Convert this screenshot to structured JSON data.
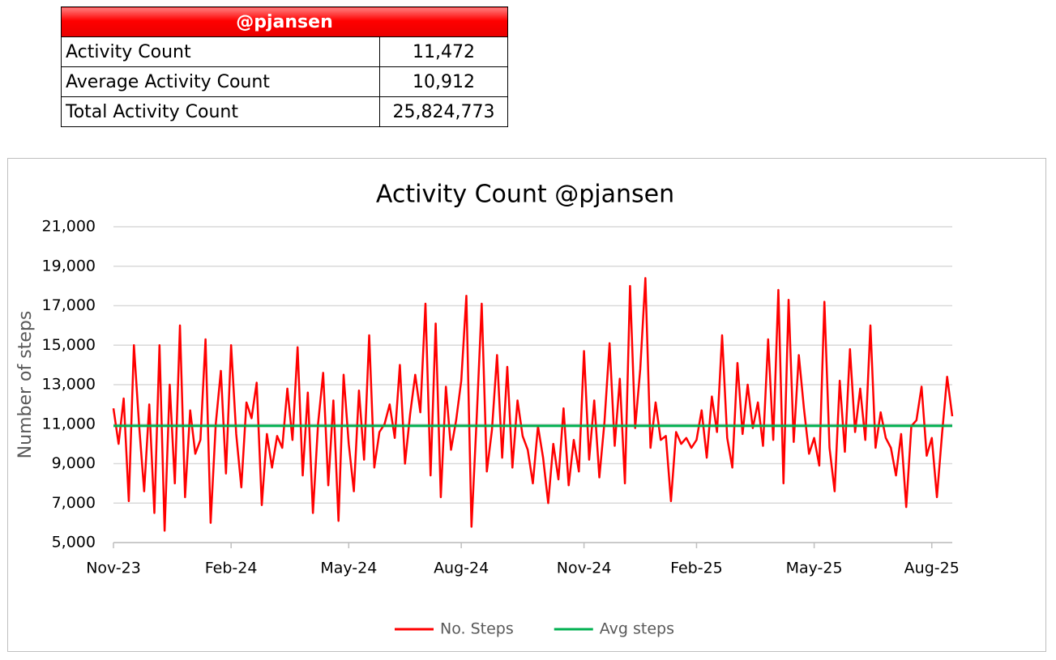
{
  "table": {
    "title": "@pjansen",
    "rows": [
      [
        "Activity Count",
        "11,472"
      ],
      [
        "Average Activity Count",
        "10,912"
      ],
      [
        "Total Activity Count",
        "25,824,773"
      ]
    ]
  },
  "chart_data": {
    "type": "line",
    "title": "Activity Count @pjansen",
    "y_label": "Number of steps",
    "categories": [
      "Nov-23",
      null,
      null,
      null,
      null,
      null,
      null,
      null,
      null,
      null,
      null,
      null,
      null,
      null,
      null,
      null,
      null,
      null,
      null,
      null,
      null,
      null,
      null,
      "Feb-24",
      null,
      null,
      null,
      null,
      null,
      null,
      null,
      null,
      null,
      null,
      null,
      null,
      null,
      null,
      null,
      null,
      null,
      null,
      null,
      null,
      null,
      null,
      "May-24",
      null,
      null,
      null,
      null,
      null,
      null,
      null,
      null,
      null,
      null,
      null,
      null,
      null,
      null,
      null,
      null,
      null,
      null,
      null,
      null,
      null,
      "Aug-24",
      null,
      null,
      null,
      null,
      null,
      null,
      null,
      null,
      null,
      null,
      null,
      null,
      null,
      null,
      null,
      null,
      null,
      null,
      null,
      null,
      null,
      null,
      null,
      "Nov-24",
      null,
      null,
      null,
      null,
      null,
      null,
      null,
      null,
      null,
      null,
      null,
      null,
      null,
      null,
      null,
      null,
      null,
      null,
      null,
      null,
      null,
      "Feb-25",
      null,
      null,
      null,
      null,
      null,
      null,
      null,
      null,
      null,
      null,
      null,
      null,
      null,
      null,
      null,
      null,
      null,
      null,
      null,
      null,
      null,
      null,
      "May-25",
      null,
      null,
      null,
      null,
      null,
      null,
      null,
      null,
      null,
      null,
      null,
      null,
      null,
      null,
      null,
      null,
      null,
      null,
      null,
      null,
      null,
      null,
      "Aug-25",
      null,
      null,
      null,
      null
    ],
    "series": [
      {
        "name": "No. Steps",
        "color": "#ff0000",
        "values": [
          11800,
          10000,
          12300,
          7100,
          15000,
          11000,
          7600,
          12000,
          6500,
          15000,
          5600,
          13000,
          8000,
          16000,
          7300,
          11700,
          9500,
          10200,
          15300,
          6000,
          11000,
          13700,
          8500,
          15000,
          10500,
          7800,
          12100,
          11300,
          13100,
          6900,
          10500,
          8800,
          10400,
          9800,
          12800,
          10200,
          14900,
          8400,
          12600,
          6500,
          11000,
          13600,
          7900,
          12200,
          6100,
          13500,
          10000,
          7600,
          12700,
          9200,
          15500,
          8800,
          10600,
          11000,
          12000,
          10300,
          14000,
          9000,
          11500,
          13500,
          11600,
          17100,
          8400,
          16100,
          7300,
          12900,
          9700,
          11200,
          13200,
          17500,
          5800,
          11200,
          17100,
          8600,
          10700,
          14500,
          9300,
          13900,
          8800,
          12200,
          10400,
          9700,
          8000,
          10900,
          9300,
          7000,
          10000,
          8200,
          11800,
          7900,
          10200,
          8600,
          14700,
          9200,
          12200,
          8300,
          11100,
          15100,
          9900,
          13300,
          8000,
          18000,
          10800,
          13800,
          18400,
          9800,
          12100,
          10200,
          10400,
          7100,
          10600,
          10000,
          10300,
          9800,
          10200,
          11700,
          9300,
          12400,
          10600,
          15500,
          10300,
          8800,
          14100,
          10500,
          13000,
          10800,
          12100,
          9900,
          15300,
          10200,
          17800,
          8000,
          17300,
          10100,
          14500,
          11800,
          9500,
          10300,
          8900,
          17200,
          9800,
          7600,
          13200,
          9600,
          14800,
          10600,
          12800,
          10200,
          16000,
          9800,
          11600,
          10300,
          9800,
          8400,
          10500,
          6800,
          10900,
          11200,
          12900,
          9400,
          10300,
          7300,
          10500,
          13400,
          11400
        ]
      },
      {
        "name": "Avg steps",
        "color": "#00b050",
        "values": [
          10912,
          10912,
          10912,
          10912,
          10912,
          10912,
          10912,
          10912,
          10912,
          10912,
          10912,
          10912,
          10912,
          10912,
          10912,
          10912,
          10912,
          10912,
          10912,
          10912,
          10912,
          10912,
          10912,
          10912,
          10912,
          10912,
          10912,
          10912,
          10912,
          10912,
          10912,
          10912,
          10912,
          10912,
          10912,
          10912,
          10912,
          10912,
          10912,
          10912,
          10912,
          10912,
          10912,
          10912,
          10912,
          10912,
          10912,
          10912,
          10912,
          10912,
          10912,
          10912,
          10912,
          10912,
          10912,
          10912,
          10912,
          10912,
          10912,
          10912,
          10912,
          10912,
          10912,
          10912,
          10912,
          10912,
          10912,
          10912,
          10912,
          10912,
          10912,
          10912,
          10912,
          10912,
          10912,
          10912,
          10912,
          10912,
          10912,
          10912,
          10912,
          10912,
          10912,
          10912,
          10912,
          10912,
          10912,
          10912,
          10912,
          10912,
          10912,
          10912,
          10912,
          10912,
          10912,
          10912,
          10912,
          10912,
          10912,
          10912,
          10912,
          10912,
          10912,
          10912,
          10912,
          10912,
          10912,
          10912,
          10912,
          10912,
          10912,
          10912,
          10912,
          10912,
          10912,
          10912,
          10912,
          10912,
          10912,
          10912,
          10912,
          10912,
          10912,
          10912,
          10912,
          10912,
          10912,
          10912,
          10912,
          10912,
          10912,
          10912,
          10912,
          10912,
          10912,
          10912,
          10912,
          10912,
          10912,
          10912,
          10912,
          10912,
          10912,
          10912,
          10912,
          10912,
          10912,
          10912,
          10912,
          10912,
          10912,
          10912,
          10912,
          10912,
          10912,
          10912,
          10912,
          10912,
          10912,
          10912,
          10912,
          10912,
          10912,
          10912,
          10912
        ]
      }
    ],
    "ylim": [
      5000,
      21000
    ],
    "yticks": [
      {
        "value": 5000,
        "label": "5,000"
      },
      {
        "value": 7000,
        "label": "7,000"
      },
      {
        "value": 9000,
        "label": "9,000"
      },
      {
        "value": 11000,
        "label": "11,000"
      },
      {
        "value": 13000,
        "label": "13,000"
      },
      {
        "value": 15000,
        "label": "15,000"
      },
      {
        "value": 17000,
        "label": "17,000"
      },
      {
        "value": 19000,
        "label": "19,000"
      },
      {
        "value": 21000,
        "label": "21,000"
      }
    ],
    "grid": true,
    "legend": "bottom"
  }
}
